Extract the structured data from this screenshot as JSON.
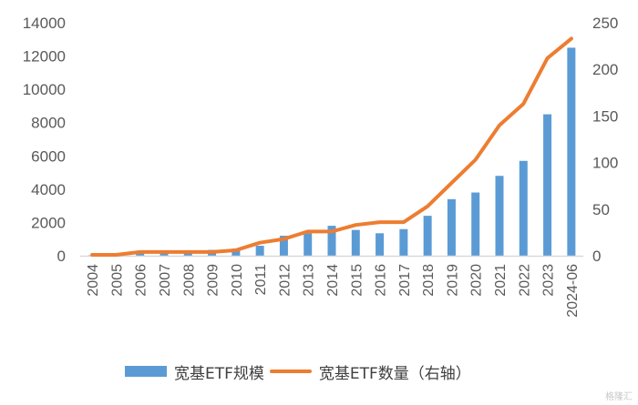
{
  "chart_data": {
    "type": "bar+line",
    "title": "",
    "categories": [
      "2004",
      "2005",
      "2006",
      "2007",
      "2008",
      "2009",
      "2010",
      "2011",
      "2012",
      "2013",
      "2014",
      "2015",
      "2016",
      "2017",
      "2018",
      "2019",
      "2020",
      "2021",
      "2022",
      "2023",
      "2024-06"
    ],
    "series": [
      {
        "name": "宽基ETF规模",
        "type": "bar",
        "axis": "left",
        "color": "#5b9bd5",
        "values": [
          30,
          40,
          150,
          180,
          200,
          350,
          420,
          600,
          1200,
          1350,
          1800,
          1550,
          1350,
          1600,
          2400,
          3400,
          3800,
          4800,
          5700,
          8500,
          12500
        ]
      },
      {
        "name": "宽基ETF数量（右轴）",
        "type": "line",
        "axis": "right",
        "color": "#ed7d31",
        "values": [
          1,
          1,
          4,
          4,
          4,
          4,
          6,
          14,
          18,
          26,
          26,
          33,
          36,
          36,
          53,
          78,
          103,
          140,
          163,
          212,
          233
        ]
      }
    ],
    "left_axis": {
      "ylim": [
        0,
        14000
      ],
      "ticks": [
        "0",
        "2000",
        "4000",
        "6000",
        "8000",
        "10000",
        "12000",
        "14000"
      ]
    },
    "right_axis": {
      "ylim": [
        0,
        250
      ],
      "ticks": [
        "0",
        "50",
        "100",
        "150",
        "200",
        "250"
      ]
    },
    "xlabel": "",
    "ylabel": "",
    "grid": false,
    "legend_position": "bottom"
  },
  "legend": {
    "bar_label": "宽基ETF规模",
    "line_label": "宽基ETF数量（右轴）"
  },
  "watermark": "格隆汇"
}
